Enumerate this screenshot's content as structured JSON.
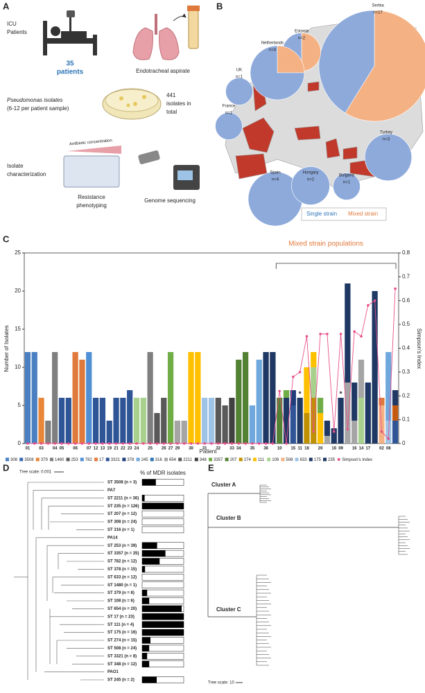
{
  "panel_letters": [
    "A",
    "B",
    "C",
    "D",
    "E"
  ],
  "panel_a": {
    "icu": [
      "ICU",
      "Patients"
    ],
    "patients": [
      "35",
      "patients"
    ],
    "aspirate": "Endotracheal aspirate",
    "isolates": [
      "Pseudomonas isolates",
      "(6-12 per patient sample)"
    ],
    "total": [
      "441",
      "isolates in",
      "total"
    ],
    "antibiotic": "Antibiotic concentration",
    "characterization": [
      "Isolate",
      "characterization"
    ],
    "phenotyping": [
      "Resistance",
      "phenotyping"
    ],
    "sequencing": "Genome sequencing"
  },
  "panel_b": {
    "single_color": "#8eaadb",
    "mixed_color": "#f4b183",
    "legend": {
      "single": "Single strain",
      "mixed": "Mixed strain"
    },
    "pies": [
      {
        "country": "Serbia",
        "n": "n=17",
        "single": 7,
        "mixed": 10
      },
      {
        "country": "Estonia",
        "n": "n=2",
        "single": 1,
        "mixed": 1
      },
      {
        "country": "Netherlands",
        "n": "n=4",
        "single": 3,
        "mixed": 1
      },
      {
        "country": "UK",
        "n": "n=1",
        "single": 1,
        "mixed": 0
      },
      {
        "country": "France",
        "n": "n=1",
        "single": 1,
        "mixed": 0
      },
      {
        "country": "Spain",
        "n": "n=4",
        "single": 4,
        "mixed": 0
      },
      {
        "country": "Hungary",
        "n": "n=2",
        "single": 2,
        "mixed": 0
      },
      {
        "country": "Bulgaria",
        "n": "n=1",
        "single": 1,
        "mixed": 0
      },
      {
        "country": "Turkey",
        "n": "n=3",
        "single": 3,
        "mixed": 0
      }
    ]
  },
  "chart_data": {
    "type": "stacked_bar",
    "xlabel": "Patient",
    "ylabel": "Number of Isolates",
    "y2label": "Simpson's Index",
    "ylim": [
      0,
      25
    ],
    "yticks": [
      0,
      5,
      10,
      15,
      20,
      25
    ],
    "y2lim": [
      0,
      0.8
    ],
    "y2ticks": [
      0,
      0.1,
      0.2,
      0.3,
      0.4,
      0.5,
      0.6,
      0.7,
      0.8
    ],
    "annotation": "Mixed strain populations",
    "asterisks": [
      "*",
      "*"
    ],
    "simpson_color": "#e8508a",
    "bars": [
      {
        "label": "01",
        "segments": [
          {
            "value": 12,
            "color": "#4a7fc1"
          }
        ],
        "simpson": 0
      },
      {
        "label": null,
        "segments": [
          {
            "value": 12,
            "color": "#4a7fc1"
          }
        ],
        "simpson": 0
      },
      {
        "label": "03",
        "segments": [
          {
            "value": 6,
            "color": "#e8863a"
          }
        ],
        "simpson": 0
      },
      {
        "label": null,
        "segments": [
          {
            "value": 3,
            "color": "#7f7f7f"
          }
        ],
        "simpson": 0
      },
      {
        "label": "04",
        "segments": [
          {
            "value": 12,
            "color": "#7f7f7f"
          }
        ],
        "simpson": 0
      },
      {
        "label": "05",
        "segments": [
          {
            "value": 6,
            "color": "#2f5597"
          }
        ],
        "simpson": 0
      },
      {
        "label": null,
        "segments": [
          {
            "value": 6,
            "color": "#2f5597"
          }
        ],
        "simpson": 0
      },
      {
        "label": "06",
        "segments": [
          {
            "value": 12,
            "color": "#e07a3c"
          }
        ],
        "simpson": 0
      },
      {
        "label": null,
        "segments": [
          {
            "value": 11,
            "color": "#e07a3c"
          }
        ],
        "simpson": 0
      },
      {
        "label": "07",
        "segments": [
          {
            "value": 12,
            "color": "#4f8fd6"
          }
        ],
        "simpson": 0
      },
      {
        "label": "12",
        "segments": [
          {
            "value": 6,
            "color": "#2f5597"
          }
        ],
        "simpson": 0
      },
      {
        "label": "13",
        "segments": [
          {
            "value": 6,
            "color": "#2f5597"
          }
        ],
        "simpson": 0
      },
      {
        "label": "19",
        "segments": [
          {
            "value": 3,
            "color": "#2f5597"
          }
        ],
        "simpson": 0
      },
      {
        "label": "21",
        "segments": [
          {
            "value": 6,
            "color": "#2f5597"
          }
        ],
        "simpson": 0
      },
      {
        "label": "22",
        "segments": [
          {
            "value": 6,
            "color": "#2f5597"
          }
        ],
        "simpson": 0
      },
      {
        "label": "23",
        "segments": [
          {
            "value": 7,
            "color": "#2f5597"
          }
        ],
        "simpson": 0
      },
      {
        "label": "24",
        "segments": [
          {
            "value": 6,
            "color": "#a9d18e"
          }
        ],
        "simpson": 0
      },
      {
        "label": null,
        "segments": [
          {
            "value": 6,
            "color": "#a9d18e"
          }
        ],
        "simpson": 0
      },
      {
        "label": "25",
        "segments": [
          {
            "value": 12,
            "color": "#7f7f7f"
          }
        ],
        "simpson": 0
      },
      {
        "label": null,
        "segments": [
          {
            "value": 4,
            "color": "#595959"
          }
        ],
        "simpson": 0
      },
      {
        "label": "26",
        "segments": [
          {
            "value": 6,
            "color": "#595959"
          }
        ],
        "simpson": 0
      },
      {
        "label": "27",
        "segments": [
          {
            "value": 12,
            "color": "#70ad47"
          }
        ],
        "simpson": 0
      },
      {
        "label": "29",
        "segments": [
          {
            "value": 3,
            "color": "#a5a5a5"
          }
        ],
        "simpson": 0
      },
      {
        "label": null,
        "segments": [
          {
            "value": 3,
            "color": "#a5a5a5"
          }
        ],
        "simpson": 0
      },
      {
        "label": "30",
        "segments": [
          {
            "value": 12,
            "color": "#ffc000"
          }
        ],
        "simpson": 0
      },
      {
        "label": null,
        "segments": [
          {
            "value": 12,
            "color": "#ffc000"
          }
        ],
        "simpson": 0
      },
      {
        "label": "31",
        "segments": [
          {
            "value": 6,
            "color": "#9dc3e6"
          }
        ],
        "simpson": 0
      },
      {
        "label": null,
        "segments": [
          {
            "value": 6,
            "color": "#9dc3e6"
          }
        ],
        "simpson": 0
      },
      {
        "label": "32",
        "segments": [
          {
            "value": 6,
            "color": "#595959"
          }
        ],
        "simpson": 0
      },
      {
        "label": null,
        "segments": [
          {
            "value": 5,
            "color": "#595959"
          }
        ],
        "simpson": 0
      },
      {
        "label": "33",
        "segments": [
          {
            "value": 6,
            "color": "#404040"
          }
        ],
        "simpson": 0
      },
      {
        "label": "34",
        "segments": [
          {
            "value": 11,
            "color": "#548235"
          }
        ],
        "simpson": 0
      },
      {
        "label": null,
        "segments": [
          {
            "value": 12,
            "color": "#548235"
          }
        ],
        "simpson": 0
      },
      {
        "label": "35",
        "segments": [
          {
            "value": 5,
            "color": "#6fa8dc"
          }
        ],
        "simpson": 0
      },
      {
        "label": null,
        "segments": [
          {
            "value": 11,
            "color": "#6fa8dc"
          }
        ],
        "simpson": 0
      },
      {
        "label": "36",
        "segments": [
          {
            "value": 12,
            "color": "#1f3864"
          }
        ],
        "simpson": 0
      },
      {
        "label": null,
        "segments": [
          {
            "value": 12,
            "color": "#1f3864"
          }
        ],
        "simpson": 0
      },
      {
        "label": "10",
        "segments": [
          {
            "value": 6,
            "color": "#548235"
          }
        ],
        "simpson": 0.22
      },
      {
        "label": null,
        "segments": [
          {
            "value": 6,
            "color": "#1f3864"
          },
          {
            "value": 1,
            "color": "#70ad47"
          }
        ],
        "simpson": 0
      },
      {
        "label": "15",
        "segments": [
          {
            "value": 5,
            "color": "#2f5597"
          },
          {
            "value": 2,
            "color": "#1f3d7a"
          }
        ],
        "simpson": 0.28
      },
      {
        "label": "11",
        "segments": [
          {
            "value": 6,
            "color": "#1f3864"
          }
        ],
        "simpson": 0.3
      },
      {
        "label": "18",
        "segments": [
          {
            "value": 4,
            "color": "#bf9000"
          },
          {
            "value": 6,
            "color": "#ffc000"
          }
        ],
        "simpson": 0.45
      },
      {
        "label": null,
        "segments": [
          {
            "value": 6,
            "color": "#bf9000"
          },
          {
            "value": 4,
            "color": "#a9d18e"
          },
          {
            "value": 2,
            "color": "#ffc000"
          }
        ],
        "simpson": 0.05
      },
      {
        "label": "20",
        "segments": [
          {
            "value": 4,
            "color": "#ffc000"
          },
          {
            "value": 2,
            "color": "#70ad47"
          }
        ],
        "simpson": 0.46
      },
      {
        "label": null,
        "segments": [
          {
            "value": 1,
            "color": "#a5a5a5"
          },
          {
            "value": 2,
            "color": "#1f3864"
          }
        ],
        "simpson": 0.46
      },
      {
        "label": "16",
        "segments": [
          {
            "value": 2,
            "color": "#1f3864"
          }
        ],
        "simpson": 0.05
      },
      {
        "label": "09",
        "segments": [
          {
            "value": 6,
            "color": "#1f3864"
          }
        ],
        "simpson": 0.46
      },
      {
        "label": null,
        "segments": [
          {
            "value": 8,
            "color": "#a5a5a5"
          },
          {
            "value": 13,
            "color": "#1f3864"
          }
        ],
        "simpson": 0.06
      },
      {
        "label": "16",
        "segments": [
          {
            "value": 3,
            "color": "#a5a5a5"
          },
          {
            "value": 5,
            "color": "#1f3864"
          }
        ],
        "simpson": 0.47
      },
      {
        "label": "14",
        "segments": [
          {
            "value": 6,
            "color": "#a9d18e"
          },
          {
            "value": 5,
            "color": "#a5a5a5"
          }
        ],
        "simpson": 0.45
      },
      {
        "label": "17",
        "segments": [
          {
            "value": 8,
            "color": "#1f3864"
          }
        ],
        "simpson": 0.58
      },
      {
        "label": null,
        "segments": [
          {
            "value": 20,
            "color": "#1f3864"
          }
        ],
        "simpson": 0.6
      },
      {
        "label": "02",
        "segments": [
          {
            "value": 5,
            "color": "#f4b183"
          },
          {
            "value": 1,
            "color": "#e07a3c"
          }
        ],
        "simpson": 0.05
      },
      {
        "label": "08",
        "segments": [
          {
            "value": 3,
            "color": "#9dc3e6"
          },
          {
            "value": 9,
            "color": "#6fa8dc"
          }
        ],
        "simpson": 0.02
      },
      {
        "label": null,
        "segments": [
          {
            "value": 3,
            "color": "#2f5597"
          },
          {
            "value": 2,
            "color": "#c55a11"
          },
          {
            "value": 2,
            "color": "#1f3864"
          }
        ],
        "simpson": 0.65
      }
    ],
    "legend": [
      {
        "name": "308",
        "color": "#4a7fc1"
      },
      {
        "name": "3508",
        "color": "#3a6ab0"
      },
      {
        "name": "379",
        "color": "#e8863a"
      },
      {
        "name": "1460",
        "color": "#7f7f7f"
      },
      {
        "name": "253",
        "color": "#5b5b5b"
      },
      {
        "name": "782",
        "color": "#4f8fd6"
      },
      {
        "name": "17",
        "color": "#e07a3c"
      },
      {
        "name": "3321",
        "color": "#2f5597"
      },
      {
        "name": "378",
        "color": "#1f3d7a"
      },
      {
        "name": "245",
        "color": "#6fa8dc"
      },
      {
        "name": "316",
        "color": "#2e75b6"
      },
      {
        "name": "654",
        "color": "#a5a5a5"
      },
      {
        "name": "2211",
        "color": "#595959"
      },
      {
        "name": "348",
        "color": "#404040"
      },
      {
        "name": "3357",
        "color": "#70ad47"
      },
      {
        "name": "207",
        "color": "#548235"
      },
      {
        "name": "274",
        "color": "#bf9000"
      },
      {
        "name": "111",
        "color": "#ffc000"
      },
      {
        "name": "108",
        "color": "#a9d18e"
      },
      {
        "name": "508",
        "color": "#f4b183"
      },
      {
        "name": "633",
        "color": "#9dc3e6"
      },
      {
        "name": "175",
        "color": "#203864"
      },
      {
        "name": "235",
        "color": "#1f3864"
      },
      {
        "name": "Simpson's Index",
        "color": "#e8508a"
      }
    ]
  },
  "panel_d": {
    "tree_scale": "Tree scale: 0.001",
    "header": "% of MDR isolates",
    "rows": [
      {
        "label": "ST 3508 (n = 3)",
        "mdr_percent": 33
      },
      {
        "label": "PA7"
      },
      {
        "label": "ST 2211 (n = 36)",
        "mdr_percent": 6
      },
      {
        "label": "ST 235 (n = 126)",
        "mdr_percent": 100
      },
      {
        "label": "ST 207 (n = 12)",
        "mdr_percent": 0
      },
      {
        "label": "ST 308 (n = 24)",
        "mdr_percent": 0
      },
      {
        "label": "ST 316 (n = 1)",
        "mdr_percent": 0
      },
      {
        "label": "PA14"
      },
      {
        "label": "ST 253 (n = 39)",
        "mdr_percent": 36
      },
      {
        "label": "ST 3357 (n = 25)",
        "mdr_percent": 56
      },
      {
        "label": "ST 782 (n = 12)",
        "mdr_percent": 42
      },
      {
        "label": "ST 378 (n = 15)",
        "mdr_percent": 7
      },
      {
        "label": "ST 633 (n = 12)",
        "mdr_percent": 0
      },
      {
        "label": "ST 1480 (n = 1)",
        "mdr_percent": 0
      },
      {
        "label": "ST 379 (n = 8)",
        "mdr_percent": 12
      },
      {
        "label": "ST 108 (n = 6)",
        "mdr_percent": 17
      },
      {
        "label": "ST 654 (n = 20)",
        "mdr_percent": 95
      },
      {
        "label": "ST 17 (n = 23)",
        "mdr_percent": 100
      },
      {
        "label": "ST 111 (n = 4)",
        "mdr_percent": 100
      },
      {
        "label": "ST 175 (n = 16)",
        "mdr_percent": 100
      },
      {
        "label": "ST 274 (n = 15)",
        "mdr_percent": 20
      },
      {
        "label": "ST 508 (n = 24)",
        "mdr_percent": 17
      },
      {
        "label": "ST 3321 (n = 8)",
        "mdr_percent": 12
      },
      {
        "label": "ST 348 (n = 12)",
        "mdr_percent": 17
      },
      {
        "label": "PAO1"
      },
      {
        "label": "ST 245 (n = 2)",
        "mdr_percent": 35
      }
    ]
  },
  "panel_e": {
    "clusters": [
      "Cluster A",
      "Cluster B",
      "Cluster C"
    ],
    "tree_scale": "Tree scale: 10"
  }
}
